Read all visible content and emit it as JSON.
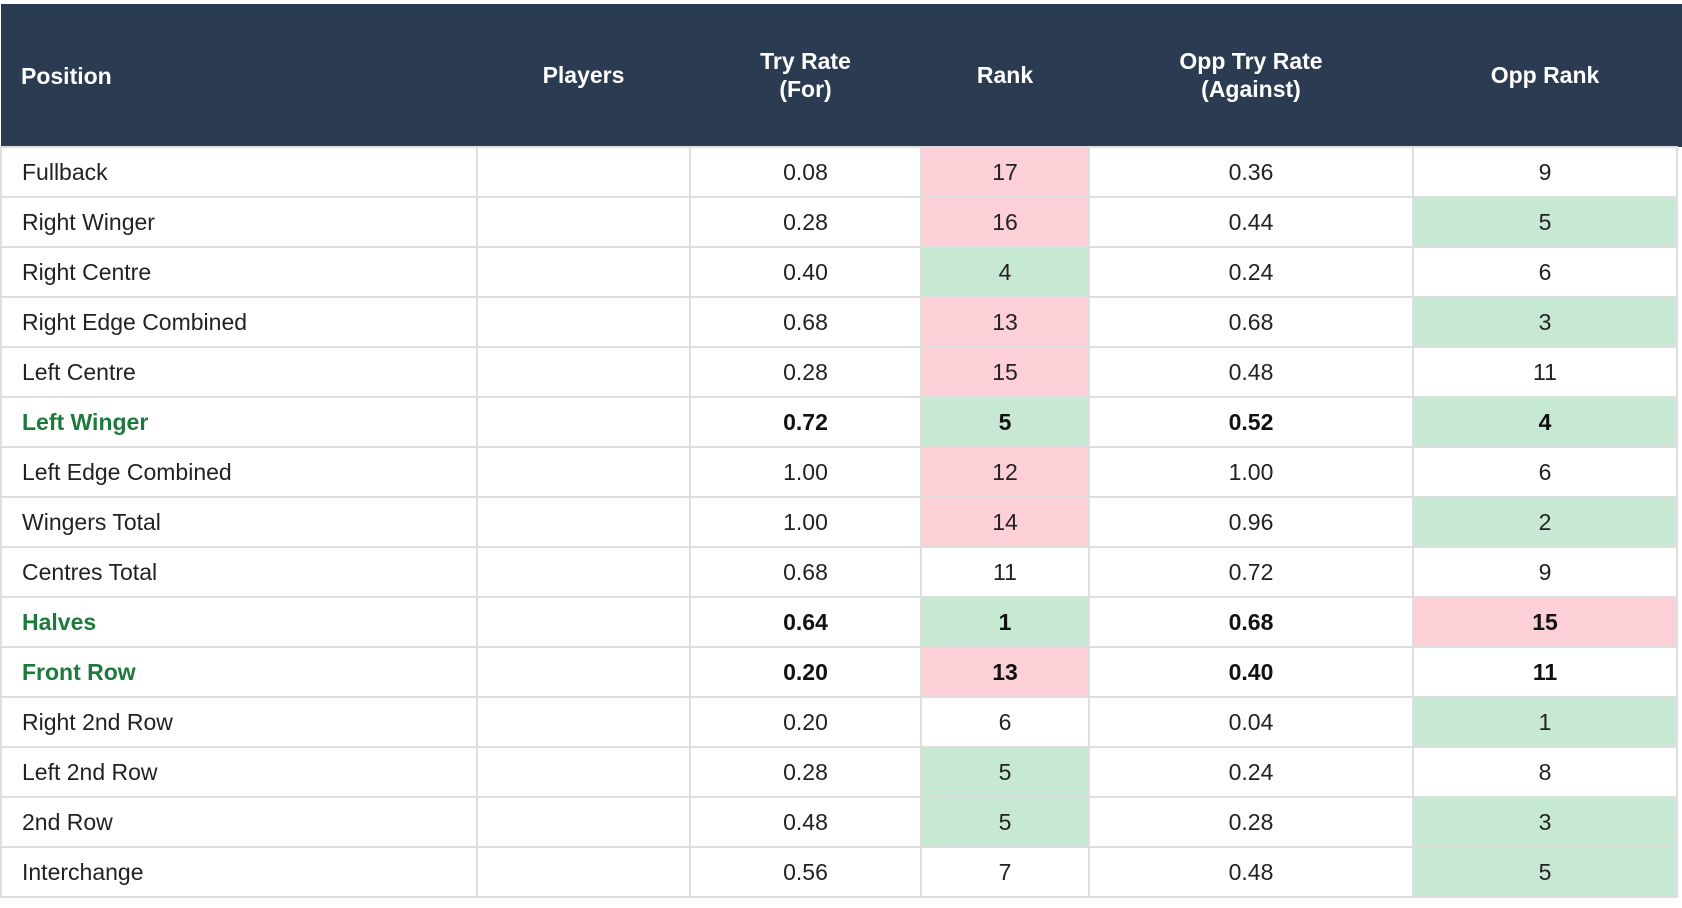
{
  "table": {
    "headers": {
      "position": "Position",
      "players": "Players",
      "try_rate_line1": "Try Rate",
      "try_rate_line2": "(For)",
      "rank": "Rank",
      "opp_try_rate_line1": "Opp Try Rate",
      "opp_try_rate_line2": "(Against)",
      "opp_rank": "Opp Rank"
    },
    "highlight_color": "#1e7a3c",
    "rank_colors": {
      "good": "#c7e9d3",
      "bad": "#fcd0d6",
      "none": "#ffffff"
    },
    "rows": [
      {
        "position": "Fullback",
        "players": "",
        "try_rate": "0.08",
        "rank": "17",
        "rank_shade": "bad",
        "opp_try_rate": "0.36",
        "opp_rank": "9",
        "opp_rank_shade": "none",
        "highlight": false
      },
      {
        "position": "Right Winger",
        "players": "",
        "try_rate": "0.28",
        "rank": "16",
        "rank_shade": "bad",
        "opp_try_rate": "0.44",
        "opp_rank": "5",
        "opp_rank_shade": "good",
        "highlight": false
      },
      {
        "position": "Right Centre",
        "players": "",
        "try_rate": "0.40",
        "rank": "4",
        "rank_shade": "good",
        "opp_try_rate": "0.24",
        "opp_rank": "6",
        "opp_rank_shade": "none",
        "highlight": false
      },
      {
        "position": "Right Edge Combined",
        "players": "",
        "try_rate": "0.68",
        "rank": "13",
        "rank_shade": "bad",
        "opp_try_rate": "0.68",
        "opp_rank": "3",
        "opp_rank_shade": "good",
        "highlight": false
      },
      {
        "position": "Left Centre",
        "players": "",
        "try_rate": "0.28",
        "rank": "15",
        "rank_shade": "bad",
        "opp_try_rate": "0.48",
        "opp_rank": "11",
        "opp_rank_shade": "none",
        "highlight": false
      },
      {
        "position": "Left Winger",
        "players": "",
        "try_rate": "0.72",
        "rank": "5",
        "rank_shade": "good",
        "opp_try_rate": "0.52",
        "opp_rank": "4",
        "opp_rank_shade": "good",
        "highlight": true
      },
      {
        "position": "Left Edge Combined",
        "players": "",
        "try_rate": "1.00",
        "rank": "12",
        "rank_shade": "bad",
        "opp_try_rate": "1.00",
        "opp_rank": "6",
        "opp_rank_shade": "none",
        "highlight": false
      },
      {
        "position": "Wingers Total",
        "players": "",
        "try_rate": "1.00",
        "rank": "14",
        "rank_shade": "bad",
        "opp_try_rate": "0.96",
        "opp_rank": "2",
        "opp_rank_shade": "good",
        "highlight": false
      },
      {
        "position": "Centres Total",
        "players": "",
        "try_rate": "0.68",
        "rank": "11",
        "rank_shade": "none",
        "opp_try_rate": "0.72",
        "opp_rank": "9",
        "opp_rank_shade": "none",
        "highlight": false
      },
      {
        "position": "Halves",
        "players": "",
        "try_rate": "0.64",
        "rank": "1",
        "rank_shade": "good",
        "opp_try_rate": "0.68",
        "opp_rank": "15",
        "opp_rank_shade": "bad",
        "highlight": true
      },
      {
        "position": "Front Row",
        "players": "",
        "try_rate": "0.20",
        "rank": "13",
        "rank_shade": "bad",
        "opp_try_rate": "0.40",
        "opp_rank": "11",
        "opp_rank_shade": "none",
        "highlight": true
      },
      {
        "position": "Right 2nd Row",
        "players": "",
        "try_rate": "0.20",
        "rank": "6",
        "rank_shade": "none",
        "opp_try_rate": "0.04",
        "opp_rank": "1",
        "opp_rank_shade": "good",
        "highlight": false
      },
      {
        "position": "Left 2nd Row",
        "players": "",
        "try_rate": "0.28",
        "rank": "5",
        "rank_shade": "good",
        "opp_try_rate": "0.24",
        "opp_rank": "8",
        "opp_rank_shade": "none",
        "highlight": false
      },
      {
        "position": "2nd Row",
        "players": "",
        "try_rate": "0.48",
        "rank": "5",
        "rank_shade": "good",
        "opp_try_rate": "0.28",
        "opp_rank": "3",
        "opp_rank_shade": "good",
        "highlight": false
      },
      {
        "position": "Interchange",
        "players": "",
        "try_rate": "0.56",
        "rank": "7",
        "rank_shade": "none",
        "opp_try_rate": "0.48",
        "opp_rank": "5",
        "opp_rank_shade": "good",
        "highlight": false
      }
    ]
  }
}
